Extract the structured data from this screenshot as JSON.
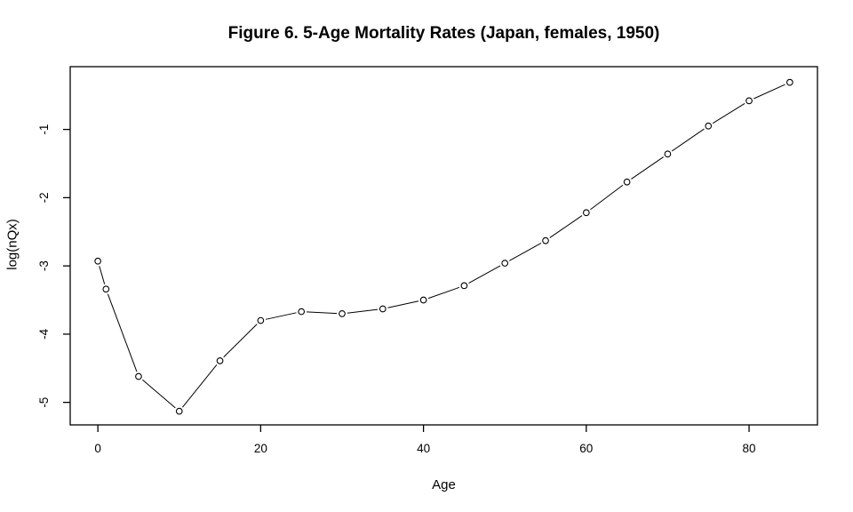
{
  "chart_data": {
    "type": "line",
    "title": "Figure 6. 5-Age Mortality Rates (Japan, females, 1950)",
    "xlabel": "Age",
    "ylabel": "log(nQx)",
    "x": [
      0,
      1,
      5,
      10,
      15,
      20,
      25,
      30,
      35,
      40,
      45,
      50,
      55,
      60,
      65,
      70,
      75,
      80,
      85
    ],
    "y": [
      -2.93,
      -3.34,
      -4.62,
      -5.13,
      -4.39,
      -3.8,
      -3.67,
      -3.7,
      -3.63,
      -3.5,
      -3.29,
      -2.96,
      -2.63,
      -2.22,
      -1.77,
      -1.36,
      -0.95,
      -0.58,
      -0.31
    ],
    "xticks": [
      0,
      20,
      40,
      60,
      80
    ],
    "yticks": [
      -5,
      -4,
      -3,
      -2,
      -1
    ],
    "xlim": [
      -3.4,
      88.4
    ],
    "ylim": [
      -5.33,
      -0.08
    ],
    "marker": "open-circle",
    "line_style": "points-and-segments-with-gaps",
    "line_color": "#000000",
    "text_color": "#000000",
    "background": "#ffffff",
    "grid": false,
    "legend": "none"
  }
}
